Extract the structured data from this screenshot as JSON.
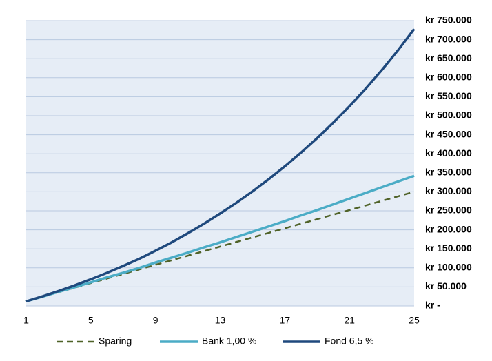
{
  "chart_data": {
    "type": "line",
    "x": [
      1,
      2,
      3,
      4,
      5,
      6,
      7,
      8,
      9,
      10,
      11,
      12,
      13,
      14,
      15,
      16,
      17,
      18,
      19,
      20,
      21,
      22,
      23,
      24,
      25
    ],
    "xlim": [
      1,
      25
    ],
    "xticks": [
      1,
      5,
      9,
      13,
      17,
      21,
      25
    ],
    "ylim": [
      0,
      750000
    ],
    "yticks": [
      {
        "value": 0,
        "label": "kr -"
      },
      {
        "value": 50000,
        "label": "kr 50.000"
      },
      {
        "value": 100000,
        "label": "kr 100.000"
      },
      {
        "value": 150000,
        "label": "kr 150.000"
      },
      {
        "value": 200000,
        "label": "kr 200.000"
      },
      {
        "value": 250000,
        "label": "kr 250.000"
      },
      {
        "value": 300000,
        "label": "kr 300.000"
      },
      {
        "value": 350000,
        "label": "kr 350.000"
      },
      {
        "value": 400000,
        "label": "kr 400.000"
      },
      {
        "value": 450000,
        "label": "kr 450.000"
      },
      {
        "value": 500000,
        "label": "kr 500.000"
      },
      {
        "value": 550000,
        "label": "kr 550.000"
      },
      {
        "value": 600000,
        "label": "kr 600.000"
      },
      {
        "value": 650000,
        "label": "kr 650.000"
      },
      {
        "value": 700000,
        "label": "kr 700.000"
      },
      {
        "value": 750000,
        "label": "kr 750.000"
      }
    ],
    "grid": true,
    "legend": "bottom",
    "series": [
      {
        "name": "Sparing",
        "color": "#4f6228",
        "dashed": true,
        "values": [
          12000,
          24000,
          36000,
          48000,
          60000,
          72000,
          84000,
          96000,
          108000,
          120000,
          132000,
          144000,
          156000,
          168000,
          180000,
          192000,
          204000,
          216000,
          228000,
          240000,
          252000,
          264000,
          276000,
          288000,
          300000
        ]
      },
      {
        "name": "Bank 1,00 %",
        "color": "#4bacc6",
        "values": [
          12000,
          24000,
          37000,
          49000,
          62000,
          75000,
          87000,
          100000,
          114000,
          127000,
          140000,
          154000,
          167000,
          181000,
          195000,
          209000,
          223000,
          238000,
          252000,
          267000,
          282000,
          297000,
          312000,
          327000,
          342000
        ]
      },
      {
        "name": "Fond 6,5 %",
        "color": "#1f497d",
        "values": [
          12000,
          25000,
          39000,
          54000,
          70000,
          87000,
          105000,
          124000,
          145000,
          167000,
          191000,
          216000,
          243000,
          271000,
          301000,
          333000,
          367000,
          403000,
          441000,
          482000,
          525000,
          571000,
          620000,
          672000,
          728000
        ]
      }
    ]
  }
}
